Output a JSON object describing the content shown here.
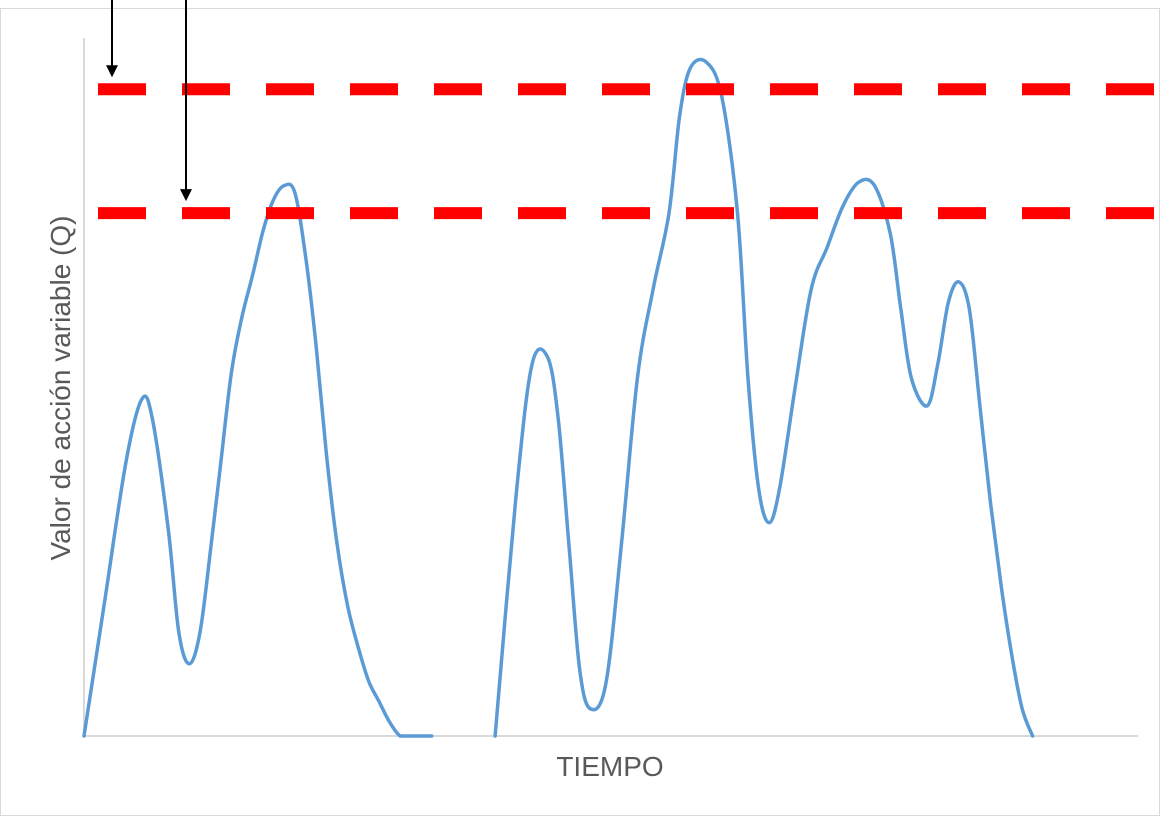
{
  "chart_data": {
    "type": "line",
    "title": "",
    "xlabel": "TIEMPO",
    "ylabel": "Valor de acción variable (Q)",
    "xlim": [
      0,
      100
    ],
    "ylim": [
      0,
      100
    ],
    "grid": false,
    "legend": "none",
    "series": [
      {
        "color": "#5b9bd5",
        "segments": [
          {
            "x": [
              0,
              2,
              4,
              5.5,
              6.5,
              8,
              9,
              10,
              11,
              12,
              13,
              14,
              15,
              16,
              17,
              18,
              19,
              20,
              21,
              22,
              23,
              24,
              25,
              26,
              27,
              28,
              29,
              30,
              31,
              32,
              33
            ],
            "y": [
              0,
              20,
              40,
              49,
              46,
              30,
              15,
              10.5,
              15,
              27,
              40,
              53,
              61,
              67,
              73.5,
              78,
              80,
              79,
              70,
              57,
              41,
              28,
              19,
              13,
              8,
              5,
              2,
              0,
              0,
              0,
              0
            ]
          },
          {
            "x": [
              39,
              41,
              42.5,
              44,
              45,
              46,
              47,
              48,
              49.5,
              51,
              52.5,
              54,
              55.5,
              56.5,
              57.5,
              59,
              60.5,
              62,
              63,
              64,
              65,
              66,
              67.5,
              69,
              70.5,
              72,
              73.5,
              75,
              76.5,
              77.5,
              78.5,
              80,
              81,
              82,
              83,
              84,
              85,
              86,
              87,
              88,
              89,
              90
            ],
            "y": [
              0,
              35,
              54,
              55,
              46,
              28,
              10,
              4,
              7.5,
              28,
              52,
              65,
              76,
              90,
              97,
              98,
              93,
              76,
              52,
              36,
              31,
              36,
              51,
              65,
              71,
              77,
              80.5,
              80,
              73,
              62,
              52,
              48,
              54,
              63,
              66,
              62,
              48,
              34,
              22,
              12,
              4,
              0
            ]
          }
        ]
      }
    ],
    "thresholds": [
      {
        "y": 94,
        "color": "#ff0000",
        "style": "dashed"
      },
      {
        "y": 76,
        "color": "#ff0000",
        "style": "dashed"
      }
    ],
    "annotations": [
      {
        "type": "arrow",
        "points_to": "upper threshold",
        "color": "#000000"
      },
      {
        "type": "arrow",
        "points_to": "lower threshold",
        "color": "#000000"
      }
    ]
  }
}
